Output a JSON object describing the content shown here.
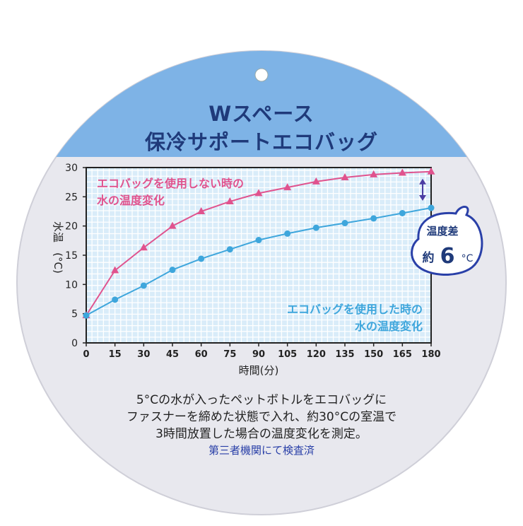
{
  "title_line1": "Wスペース",
  "title_line2": "保冷サポートエコバッグ",
  "description": [
    "5°Cの水が入ったペットボトルをエコバッグに",
    "ファスナーを締めた状態で入れ、約30°Cの室温で",
    "3時間放置した場合の温度変化を測定。"
  ],
  "footer": "第三者機関にて検査済",
  "badge": {
    "line1": "温度差",
    "prefix": "約",
    "value": "6",
    "unit": "°C"
  },
  "colors": {
    "pink": "#e0538e",
    "blue": "#3ea6dc",
    "header_band": "#7eb3e6",
    "disc": "#e8e8ee",
    "plot_bg": "#d9ecf9",
    "title": "#1f3a7a"
  },
  "chart_data": {
    "type": "line",
    "xlabel": "時間(分)",
    "ylabel": [
      "水温",
      "(°C)"
    ],
    "x": [
      0,
      15,
      30,
      45,
      60,
      75,
      90,
      105,
      120,
      135,
      150,
      165,
      180
    ],
    "x_tick_labels": [
      "0",
      "15",
      "30",
      "45",
      "60",
      "75",
      "90",
      "105",
      "120",
      "135",
      "150",
      "165",
      "180"
    ],
    "y_tick_labels": [
      "0",
      "5",
      "10",
      "15",
      "20",
      "25",
      "30"
    ],
    "xlim": [
      0,
      180
    ],
    "ylim": [
      0,
      30
    ],
    "grid": true,
    "series": [
      {
        "label_lines": [
          "エコバッグを使用しない時の",
          "水の温度変化"
        ],
        "color": "#e0538e",
        "marker": "triangle",
        "values": [
          4.7,
          12.4,
          16.3,
          20.0,
          22.5,
          24.2,
          25.6,
          26.6,
          27.6,
          28.3,
          28.8,
          29.1,
          29.3
        ]
      },
      {
        "label_lines": [
          "エコバッグを使用した時の",
          "水の温度変化"
        ],
        "color": "#3ea6dc",
        "marker": "circle",
        "values": [
          4.7,
          7.4,
          9.8,
          12.5,
          14.4,
          16.0,
          17.6,
          18.7,
          19.7,
          20.5,
          21.3,
          22.2,
          23.1
        ]
      }
    ]
  }
}
